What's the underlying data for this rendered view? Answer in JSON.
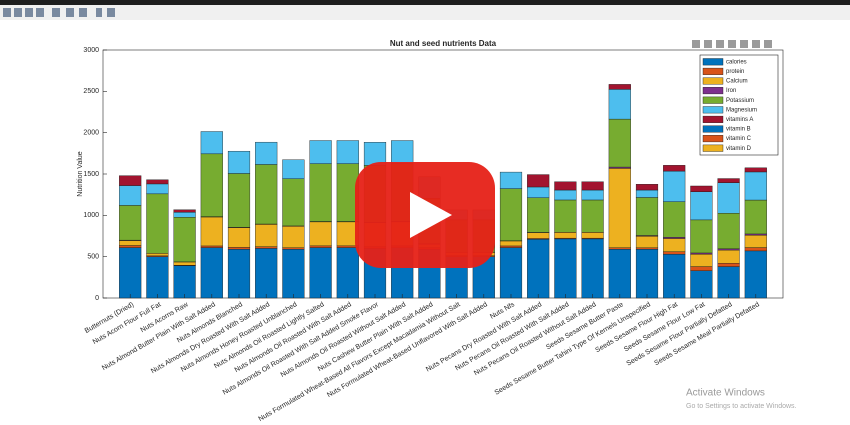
{
  "chart_data": {
    "type": "stacked_bar",
    "title": "Nut and seed nutrients Data",
    "ylabel": "Nutrition Value",
    "categories": [
      "Butternuts (Dried)",
      "Nuts Acorn Flour Full Fat",
      "Nuts Acorns Raw",
      "Nuts Almond Butter Plain With Salt Added",
      "Nuts Almonds Blanched",
      "Nuts Almonds Dry Roasted With Salt Added",
      "Nuts Almonds Honey Roasted Unblanched",
      "Nuts Almonds Oil Roasted Lightly Salted",
      "Nuts Almonds Oil Roasted With Salt Added",
      "Nuts Almonds Oil Roasted With Salt Added Smoke Flavor",
      "Nuts Almonds Oil Roasted Without Salt Added",
      "Nuts Cashew Butter Plain With Salt Added",
      "Nuts Formulated Wheat-Based All Flavors Except Macadamia Without Salt",
      "Nuts Formulated Wheat-Based Unflavored With Salt Added",
      "Nuts Nfs",
      "Nuts Pecans Dry Roasted With Salt Added",
      "Nuts Pecans Oil Roasted With Salt Added",
      "Nuts Pecans Oil Roasted Without Salt Added",
      "Seeds Sesame Butter Paste",
      "Seeds Sesame Butter Tahini Type Of Kernels Unspecified",
      "Seeds Sesame Flour High Fat",
      "Seeds Sesame Flour Low Fat",
      "Seeds Sesame Flour Partially Defatted",
      "Seeds Sesame Meal Partially Defatted"
    ],
    "series": [
      {
        "name": "calories",
        "color": "#0072bd",
        "values": [
          610,
          500,
          390,
          610,
          590,
          600,
          590,
          610,
          610,
          600,
          610,
          590,
          500,
          500,
          610,
          710,
          715,
          715,
          590,
          590,
          530,
          330,
          380,
          570
        ]
      },
      {
        "name": "protein",
        "color": "#d95319",
        "values": [
          25,
          10,
          6,
          20,
          22,
          21,
          18,
          21,
          21,
          20,
          21,
          18,
          12,
          12,
          20,
          10,
          9,
          9,
          18,
          17,
          30,
          50,
          40,
          40
        ]
      },
      {
        "name": "Calcium",
        "color": "#edb120",
        "values": [
          60,
          30,
          40,
          350,
          240,
          270,
          260,
          290,
          290,
          290,
          290,
          43,
          40,
          40,
          60,
          70,
          70,
          70,
          960,
          140,
          160,
          150,
          160,
          150
        ]
      },
      {
        "name": "Iron",
        "color": "#7e2f8e",
        "values": [
          5,
          0,
          1,
          4,
          4,
          4,
          4,
          4,
          4,
          4,
          4,
          5,
          3,
          3,
          3,
          3,
          2,
          2,
          16,
          9,
          15,
          15,
          15,
          15
        ]
      },
      {
        "name": "Potassium",
        "color": "#77ac30",
        "values": [
          420,
          720,
          540,
          760,
          650,
          720,
          570,
          700,
          700,
          690,
          700,
          550,
          390,
          390,
          630,
          420,
          390,
          390,
          580,
          460,
          430,
          400,
          430,
          410
        ]
      },
      {
        "name": "Magnesium",
        "color": "#4dbeee",
        "values": [
          240,
          120,
          60,
          270,
          270,
          270,
          230,
          280,
          280,
          280,
          280,
          260,
          120,
          120,
          200,
          130,
          120,
          120,
          360,
          90,
          370,
          340,
          370,
          340
        ]
      },
      {
        "name": "vitamins A",
        "color": "#a2142f",
        "values": [
          120,
          50,
          30,
          0,
          0,
          0,
          0,
          0,
          0,
          0,
          0,
          0,
          0,
          0,
          0,
          150,
          100,
          100,
          60,
          70,
          70,
          70,
          50,
          50
        ]
      },
      {
        "name": "vitamin B",
        "color": "#0072bd",
        "values": [
          0,
          0,
          0,
          0,
          0,
          0,
          0,
          0,
          0,
          0,
          0,
          0,
          0,
          0,
          0,
          0,
          0,
          0,
          0,
          0,
          0,
          0,
          0,
          0
        ]
      },
      {
        "name": "vitamin C",
        "color": "#d95319",
        "values": [
          0,
          0,
          0,
          0,
          0,
          0,
          0,
          0,
          0,
          0,
          0,
          0,
          0,
          0,
          0,
          0,
          0,
          0,
          0,
          0,
          0,
          0,
          0,
          0
        ]
      },
      {
        "name": "vitamin D",
        "color": "#edb120",
        "values": [
          0,
          0,
          0,
          0,
          0,
          0,
          0,
          0,
          0,
          0,
          0,
          0,
          0,
          0,
          0,
          0,
          0,
          0,
          0,
          0,
          0,
          0,
          0,
          0
        ]
      }
    ],
    "ylim": [
      0,
      3000
    ],
    "yticks": [
      0,
      500,
      1000,
      1500,
      2000,
      2500,
      3000
    ],
    "legend": "upper right"
  },
  "watermark": {
    "title": "Activate Windows",
    "subtitle": "Go to Settings to activate Windows."
  }
}
